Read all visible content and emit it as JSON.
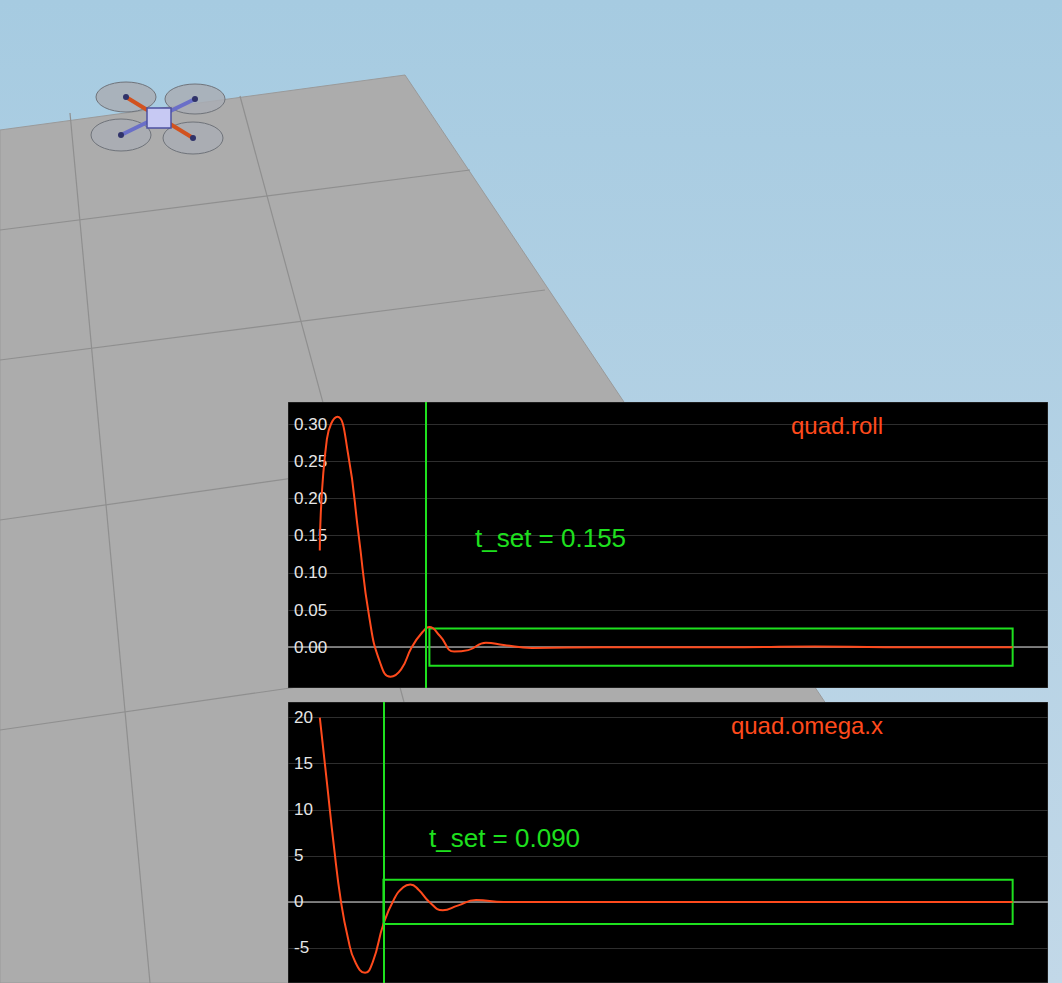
{
  "chart_data": [
    {
      "type": "line",
      "title": "quad.roll",
      "color": "#ff4a1c",
      "grid": true,
      "tick_labels": "y",
      "annotation": "t_set = 0.155",
      "settle_time": 0.155,
      "settle_band": [
        -0.025,
        0.025
      ],
      "x": [
        0,
        0.01,
        0.025,
        0.04,
        0.055,
        0.07,
        0.085,
        0.1,
        0.115,
        0.13,
        0.145,
        0.155,
        0.17,
        0.19,
        0.21,
        0.235,
        0.26,
        0.3,
        0.4,
        0.5,
        0.6,
        0.7,
        0.8,
        0.9,
        0.98
      ],
      "values": [
        0.13,
        0.28,
        0.31,
        0.26,
        0.15,
        0.04,
        -0.02,
        -0.04,
        -0.03,
        0.0,
        0.02,
        0.027,
        0.015,
        -0.006,
        -0.004,
        0.006,
        0.003,
        -0.001,
        0,
        0,
        0,
        0.001,
        0,
        0,
        0
      ],
      "xlim": [
        -0.045,
        1.03
      ],
      "ylim": [
        -0.055,
        0.33
      ],
      "yticks": [
        {
          "value": 0,
          "label": "0.00"
        },
        {
          "value": 0.05,
          "label": "0.05"
        },
        {
          "value": 0.1,
          "label": "0.10"
        },
        {
          "value": 0.15,
          "label": "0.15"
        },
        {
          "value": 0.2,
          "label": "0.20"
        },
        {
          "value": 0.25,
          "label": "0.25"
        },
        {
          "value": 0.3,
          "label": "0.30"
        }
      ]
    },
    {
      "type": "line",
      "title": "quad.omega.x",
      "color": "#ff4a1c",
      "grid": true,
      "tick_labels": "y",
      "annotation": "t_set = 0.090",
      "settle_time": 0.09,
      "settle_band": [
        -2.4,
        2.4
      ],
      "x": [
        0,
        0.01,
        0.02,
        0.03,
        0.04,
        0.05,
        0.064,
        0.075,
        0.09,
        0.105,
        0.118,
        0.128,
        0.14,
        0.155,
        0.174,
        0.195,
        0.221,
        0.26,
        0.4,
        0.6,
        0.8,
        0.98
      ],
      "values": [
        20,
        13,
        6,
        0,
        -4,
        -6.5,
        -7.7,
        -6.5,
        -2.4,
        0.3,
        1.6,
        1.9,
        1.3,
        0,
        -0.9,
        -0.4,
        0.2,
        0,
        0,
        0,
        0,
        0
      ],
      "xlim": [
        -0.045,
        1.03
      ],
      "ylim": [
        -8.8,
        21.7
      ],
      "yticks": [
        -5,
        0,
        5,
        10,
        15,
        20
      ]
    }
  ]
}
